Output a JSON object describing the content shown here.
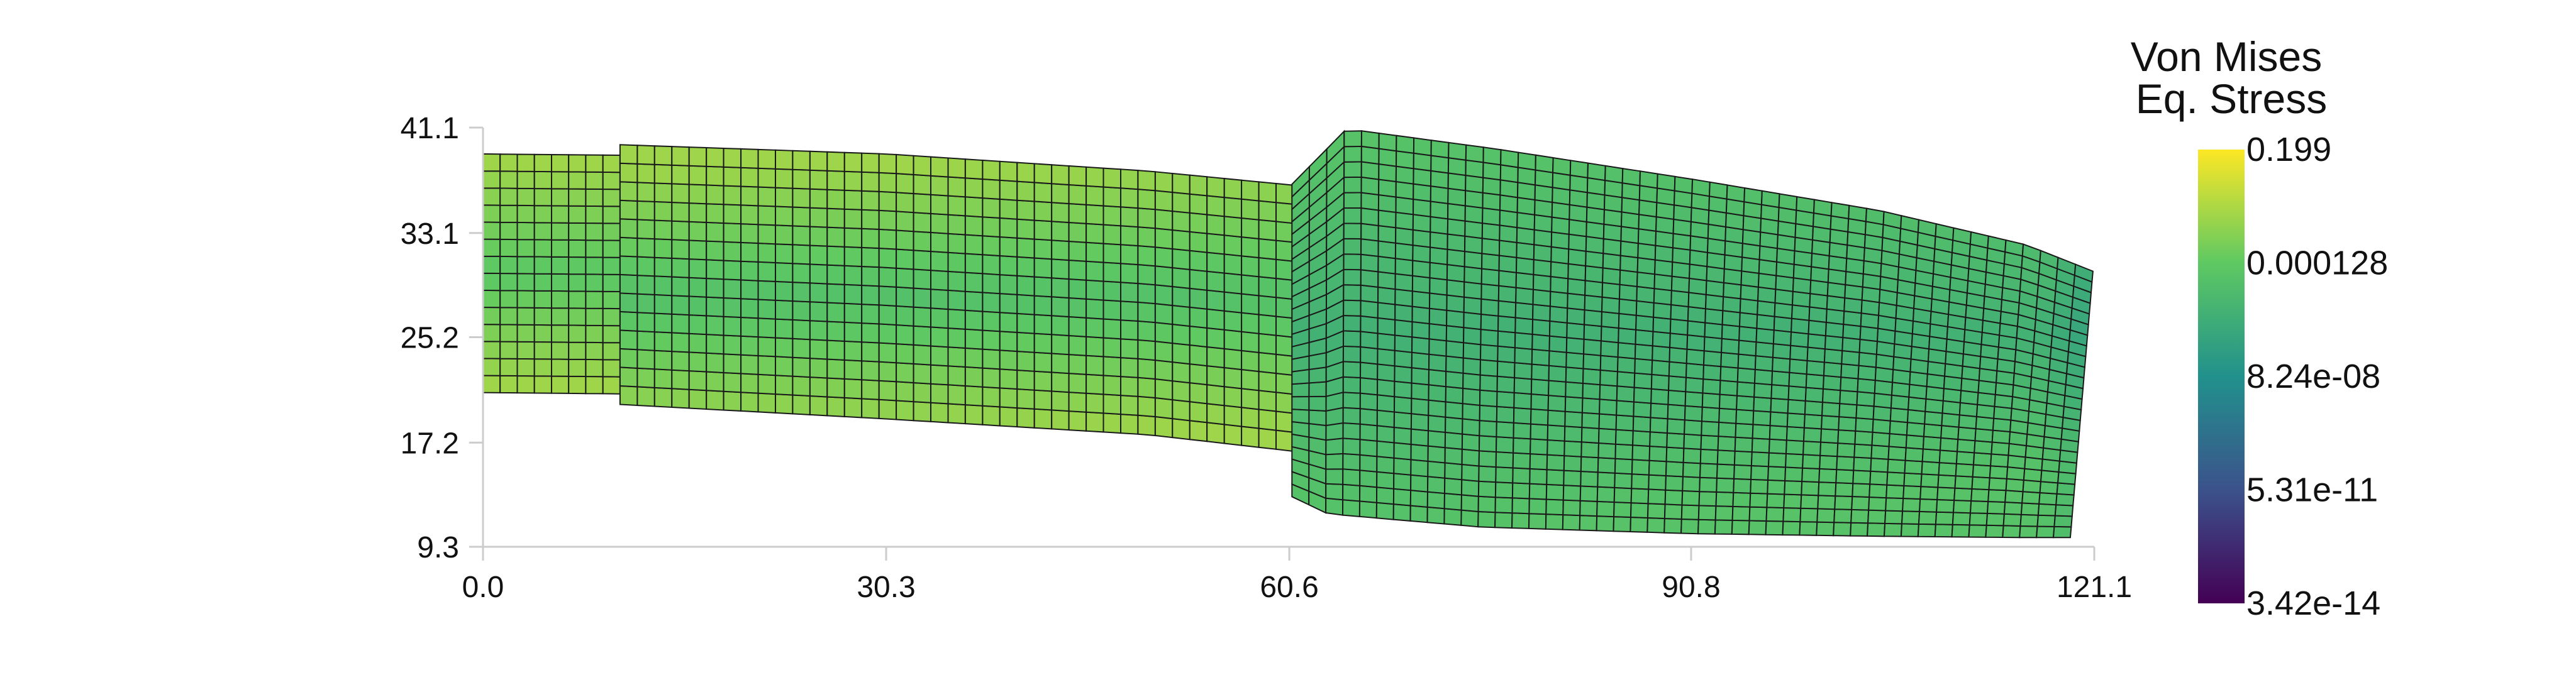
{
  "chart_data": {
    "type": "heatmap",
    "plot_kind": "deformed finite-element mesh colored by scalar field",
    "x_axis": {
      "ticks": [
        "0.0",
        "30.3",
        "60.6",
        "90.8",
        "121.1"
      ],
      "range": [
        0.0,
        121.1
      ]
    },
    "y_axis": {
      "ticks": [
        "9.3",
        "17.2",
        "25.2",
        "33.1",
        "41.1"
      ],
      "range": [
        9.3,
        41.1
      ]
    },
    "grid": false,
    "colorbar": {
      "title_line1": "Von Mises",
      "title_line2": "Eq. Stress",
      "scale": "log",
      "colormap": "viridis",
      "colors": [
        "#440154",
        "#3b528b",
        "#21918c",
        "#5ec962",
        "#fde725"
      ],
      "tick_labels": [
        "0.199",
        "0.000128",
        "8.24e-08",
        "5.31e-11",
        "3.42e-14"
      ],
      "max": 0.199,
      "min": 3.42e-14,
      "placement": "right"
    },
    "mesh": {
      "edge_color": "#1a1a1a",
      "segments": [
        {
          "name": "left",
          "x_range": [
            0.0,
            10.3
          ],
          "nx": 8,
          "ny": 14,
          "top": [
            [
              0.0,
              39.1
            ],
            [
              10.3,
              39.0
            ]
          ],
          "bottom": [
            [
              0.0,
              21.0
            ],
            [
              10.3,
              20.9
            ]
          ],
          "field": {
            "base": 0.86,
            "centerline_dip": 0.12,
            "centerline_y": 30.0
          }
        },
        {
          "name": "middle",
          "x_range": [
            10.3,
            62.2
          ],
          "nx": 40,
          "ny": 14,
          "top": [
            [
              10.3,
              39.8
            ],
            [
              30.3,
              39.1
            ],
            [
              50.0,
              37.8
            ],
            [
              62.2,
              36.6
            ]
          ],
          "bottom": [
            [
              10.3,
              20.1
            ],
            [
              30.3,
              19.0
            ],
            [
              50.0,
              17.8
            ],
            [
              62.2,
              16.4
            ]
          ],
          "field": {
            "base": 0.85,
            "centerline_dip": 0.14,
            "centerline_y": 28.2
          }
        },
        {
          "name": "right",
          "x_range": [
            60.5,
            121.0
          ],
          "nx": 46,
          "ny": 25,
          "top": [
            [
              60.8,
              36.8
            ],
            [
              64.9,
              41.0
            ],
            [
              76.0,
              39.5
            ],
            [
              90.8,
              37.2
            ],
            [
              105.0,
              34.8
            ],
            [
              116.0,
              32.2
            ],
            [
              121.0,
              30.2
            ]
          ],
          "bottom": [
            [
              60.8,
              13.1
            ],
            [
              63.5,
              11.8
            ],
            [
              75.0,
              10.8
            ],
            [
              90.8,
              10.3
            ],
            [
              105.0,
              10.1
            ],
            [
              116.0,
              10.0
            ],
            [
              119.3,
              10.0
            ]
          ],
          "field": {
            "base": 0.72,
            "centerline_dip": 0.08,
            "centerline_y": 25.5
          }
        }
      ]
    }
  }
}
